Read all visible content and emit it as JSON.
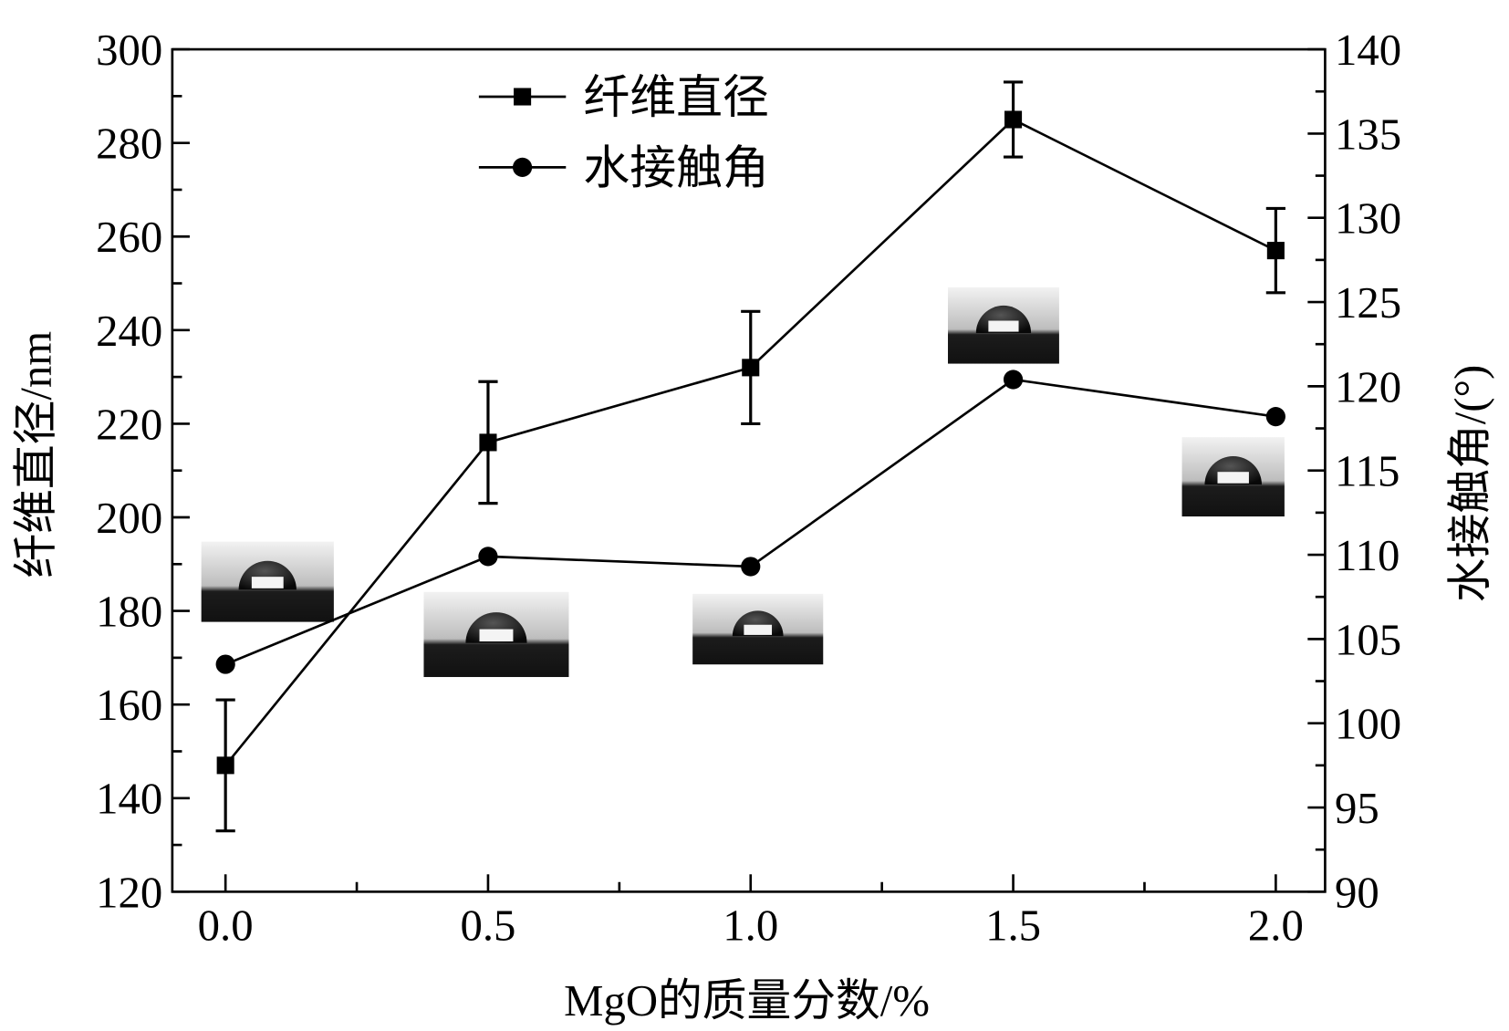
{
  "chart_data": {
    "type": "line",
    "title": "",
    "xlabel": "MgO的质量分数/%",
    "ylabel": "纤维直径/nm",
    "y2label": "水接触角/(°)",
    "x": [
      0.0,
      0.5,
      1.0,
      1.5,
      2.0
    ],
    "xticks": [
      "0.0",
      "0.5",
      "1.0",
      "1.5",
      "2.0"
    ],
    "xlim": [
      -0.1,
      2.1
    ],
    "ylim": [
      120,
      300
    ],
    "yticks": [
      "120",
      "140",
      "160",
      "180",
      "200",
      "220",
      "240",
      "260",
      "280",
      "300"
    ],
    "y2lim": [
      90,
      140
    ],
    "y2ticks": [
      "90",
      "95",
      "100",
      "105",
      "110",
      "115",
      "120",
      "125",
      "130",
      "135",
      "140"
    ],
    "grid": false,
    "legend_position": "top-left",
    "series": [
      {
        "name": "纤维直径",
        "axis": "left",
        "marker": "square",
        "values": [
          147,
          216,
          232,
          285,
          257
        ],
        "error_low": [
          133,
          203,
          220,
          277,
          248
        ],
        "error_high": [
          161,
          229,
          244,
          293,
          266
        ]
      },
      {
        "name": "水接触角",
        "axis": "right",
        "marker": "circle",
        "values": [
          103.5,
          109.9,
          109.3,
          120.4,
          118.2
        ]
      }
    ],
    "insets": "water droplet contact-angle photos near each point"
  }
}
